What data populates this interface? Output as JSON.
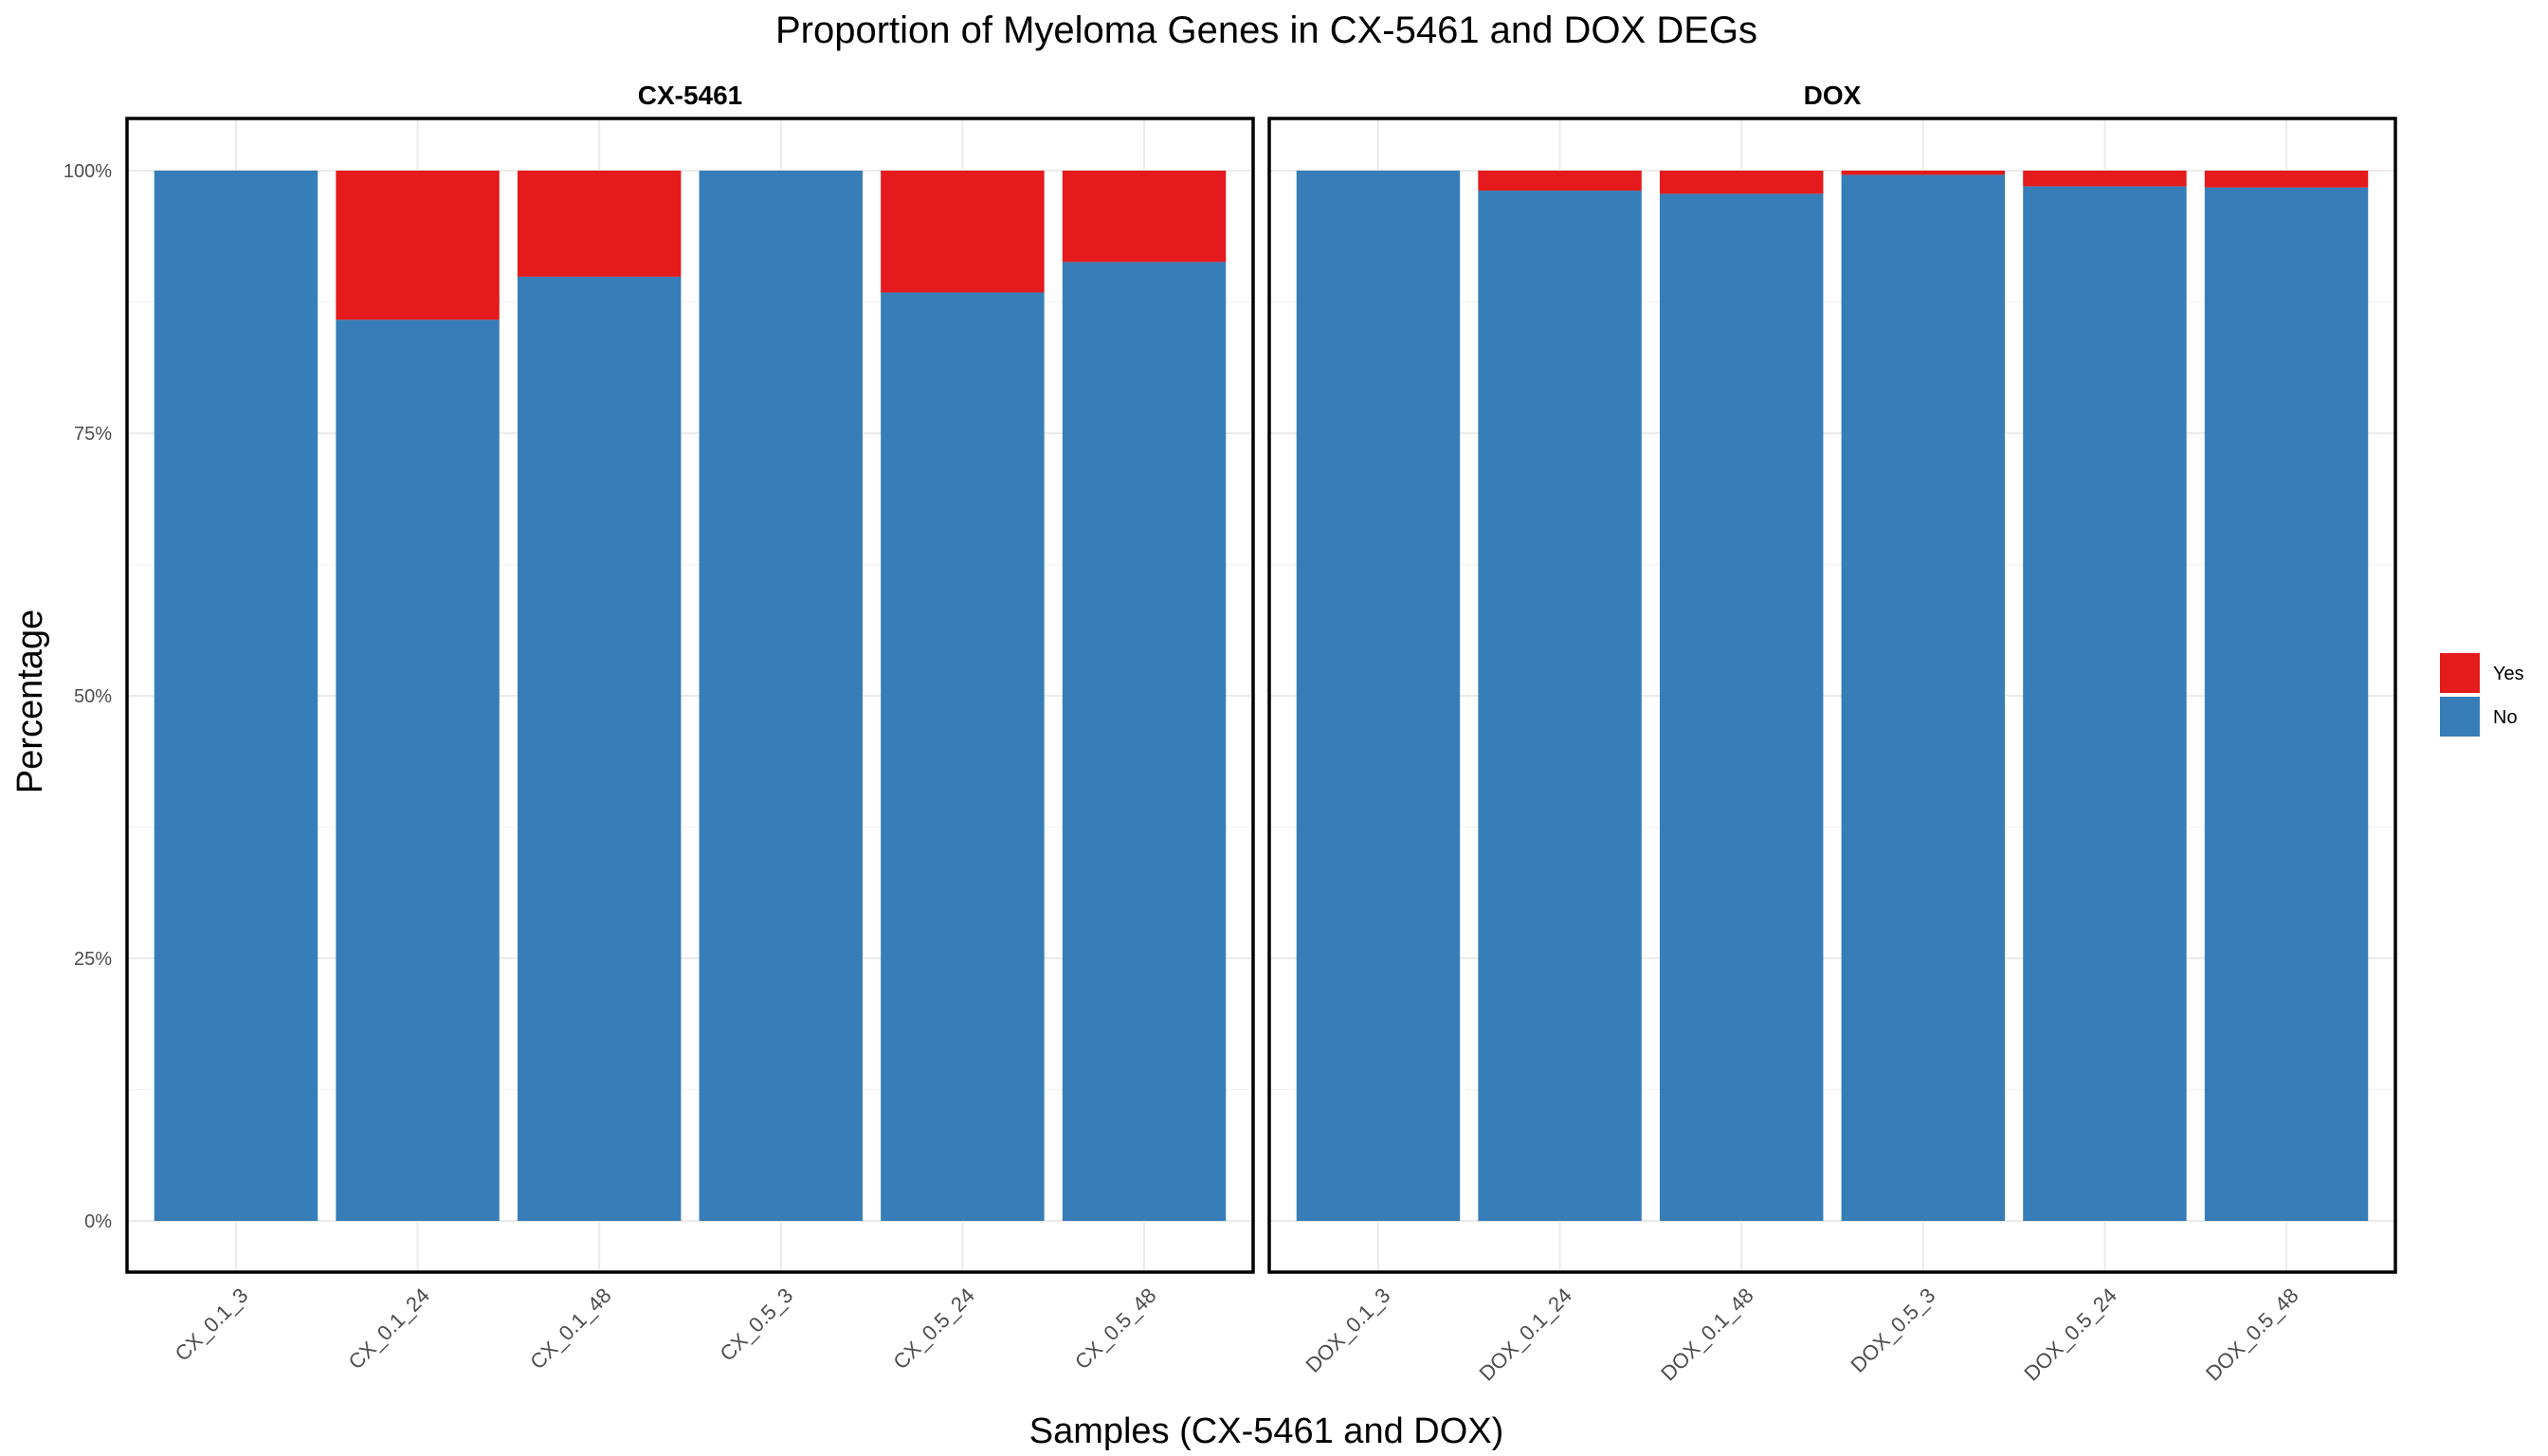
{
  "chart_data": {
    "type": "bar",
    "stacked": true,
    "percent": true,
    "title": "Proportion of Myeloma Genes in CX-5461 and DOX DEGs",
    "xlabel": "Samples (CX-5461 and DOX)",
    "ylabel": "Percentage",
    "ylim": [
      0,
      100
    ],
    "yticks": [
      0,
      25,
      50,
      75,
      100
    ],
    "ytick_labels": [
      "0%",
      "25%",
      "50%",
      "75%",
      "100%"
    ],
    "grid": true,
    "legend_position": "right",
    "legend": [
      {
        "name": "Yes",
        "color": "#E41A1C"
      },
      {
        "name": "No",
        "color": "#377EB8"
      }
    ],
    "facets": [
      {
        "label": "CX-5461",
        "categories": [
          "CX_0.1_3",
          "CX_0.1_24",
          "CX_0.1_48",
          "CX_0.5_3",
          "CX_0.5_24",
          "CX_0.5_48"
        ],
        "series": [
          {
            "name": "No",
            "values": [
              100,
              85.8,
              89.9,
              100,
              88.4,
              91.3
            ]
          },
          {
            "name": "Yes",
            "values": [
              0,
              14.2,
              10.1,
              0,
              11.6,
              8.7
            ]
          }
        ]
      },
      {
        "label": "DOX",
        "categories": [
          "DOX_0.1_3",
          "DOX_0.1_24",
          "DOX_0.1_48",
          "DOX_0.5_3",
          "DOX_0.5_24",
          "DOX_0.5_48"
        ],
        "series": [
          {
            "name": "No",
            "values": [
              100,
              98.1,
              97.8,
              99.6,
              98.5,
              98.4
            ]
          },
          {
            "name": "Yes",
            "values": [
              0,
              1.9,
              2.2,
              0.4,
              1.5,
              1.6
            ]
          }
        ]
      }
    ]
  }
}
